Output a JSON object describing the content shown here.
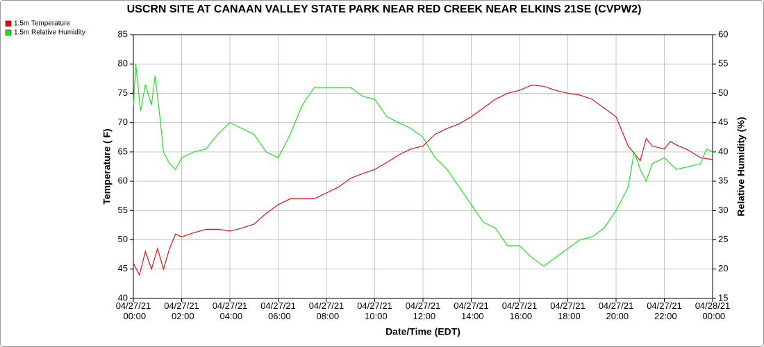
{
  "chart_data": {
    "type": "line",
    "title": "USCRN SITE AT CANAAN VALLEY STATE PARK NEAR RED CREEK NEAR ELKINS 21SE (CVPW2)",
    "xlabel": "Date/Time (EDT)",
    "ylabel": "Temperature ( F)",
    "y2label": "Relative Humidity (%)",
    "xlim": [
      0,
      24
    ],
    "xticks": [
      {
        "value": 0,
        "label": "04/27/21 00:00"
      },
      {
        "value": 2,
        "label": "04/27/21 02:00"
      },
      {
        "value": 4,
        "label": "04/27/21 04:00"
      },
      {
        "value": 6,
        "label": "04/27/21 06:00"
      },
      {
        "value": 8,
        "label": "04/27/21 08:00"
      },
      {
        "value": 10,
        "label": "04/27/21 10:00"
      },
      {
        "value": 12,
        "label": "04/27/21 12:00"
      },
      {
        "value": 14,
        "label": "04/27/21 14:00"
      },
      {
        "value": 16,
        "label": "04/27/21 16:00"
      },
      {
        "value": 18,
        "label": "04/27/21 18:00"
      },
      {
        "value": 20,
        "label": "04/27/21 20:00"
      },
      {
        "value": 22,
        "label": "04/27/21 22:00"
      },
      {
        "value": 24,
        "label": "04/28/21 00:00"
      }
    ],
    "ylim": [
      40,
      85
    ],
    "yticks": [
      40,
      45,
      50,
      55,
      60,
      65,
      70,
      75,
      80,
      85
    ],
    "y2lim": [
      15,
      60
    ],
    "y2ticks": [
      15,
      20,
      25,
      30,
      35,
      40,
      45,
      50,
      55,
      60
    ],
    "grid": true,
    "legend": "top-left",
    "series": [
      {
        "name": "1.5m Temperature",
        "color": "#e01010",
        "x": [
          0,
          0.25,
          0.5,
          0.75,
          1,
          1.25,
          1.5,
          1.75,
          2,
          2.5,
          3,
          3.5,
          4,
          4.5,
          5,
          5.5,
          6,
          6.5,
          7,
          7.5,
          8,
          8.5,
          9,
          9.5,
          10,
          10.5,
          11,
          11.5,
          12,
          12.5,
          13,
          13.5,
          14,
          14.5,
          15,
          15.5,
          16,
          16.5,
          17,
          17.5,
          18,
          18.5,
          19,
          19.5,
          20,
          20.5,
          21,
          21.25,
          21.5,
          22,
          22.25,
          22.5,
          23,
          23.5,
          24
        ],
        "values": [
          46,
          44,
          48,
          45,
          48.5,
          45,
          48.5,
          51,
          50.5,
          51.2,
          51.8,
          51.8,
          51.5,
          52,
          52.7,
          54.5,
          56,
          57,
          57,
          57,
          58,
          59,
          60.5,
          61.3,
          62,
          63.2,
          64.5,
          65.5,
          66,
          68,
          69,
          69.8,
          71,
          72.5,
          74,
          75,
          75.5,
          76.4,
          76.2,
          75.5,
          75,
          74.7,
          74,
          72.5,
          71,
          66,
          63.5,
          67.3,
          66,
          65.5,
          66.8,
          66.2,
          65.3,
          64,
          63.7
        ]
      },
      {
        "name": "1.5m Relative Humidity",
        "color": "#20e020",
        "axis": "y2",
        "x": [
          0,
          0.1,
          0.3,
          0.5,
          0.75,
          0.9,
          1.1,
          1.25,
          1.5,
          1.75,
          2,
          2.5,
          3,
          3.5,
          4,
          4.5,
          5,
          5.5,
          6,
          6.5,
          7,
          7.5,
          8,
          8.5,
          9,
          9.5,
          10,
          10.5,
          11,
          11.5,
          12,
          12.5,
          13,
          13.5,
          14,
          14.5,
          15,
          15.5,
          16,
          16.5,
          17,
          17.5,
          18,
          18.5,
          19,
          19.5,
          20,
          20.5,
          20.75,
          21,
          21.25,
          21.5,
          22,
          22.5,
          23,
          23.5,
          23.75,
          24
        ],
        "values": [
          48,
          55,
          47,
          51.5,
          48,
          53,
          46,
          40,
          38,
          37,
          39,
          40,
          40.5,
          43,
          45,
          44,
          43,
          40,
          39,
          43,
          48,
          51,
          51,
          51,
          51,
          49.5,
          49,
          46,
          45,
          44,
          42.5,
          39,
          37,
          34,
          31,
          28,
          27,
          24,
          24,
          22,
          20.5,
          22,
          23.5,
          25,
          25.5,
          27,
          30,
          34,
          40,
          37,
          35,
          38,
          39,
          37,
          37.5,
          38,
          40.5,
          40
        ]
      }
    ]
  }
}
